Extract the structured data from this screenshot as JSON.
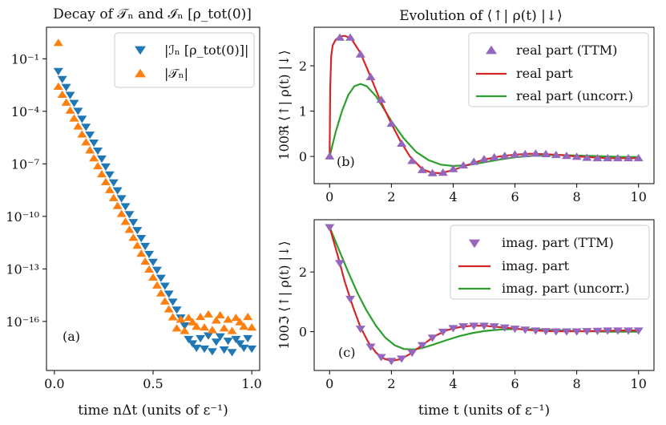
{
  "colors": {
    "blue": "#1f77b4",
    "orange": "#ff7f0e",
    "purple": "#9467bd",
    "red": "#d62728",
    "green": "#2ca02c"
  },
  "chart_data": [
    {
      "id": "a",
      "type": "scatter",
      "title": "Decay of 𝒯ₙ and ℐₙ [ρ_tot(0)]",
      "xlabel": "time nΔt (units of ε⁻¹)",
      "ylabel": "",
      "yscale": "log",
      "panel_label": "(a)",
      "xlim": [
        -0.04,
        1.04
      ],
      "ylim_exp": [
        -18.8,
        0.8
      ],
      "x_ticks": [
        0.0,
        0.5,
        1.0
      ],
      "x_tick_labels": [
        "0.0",
        "0.5",
        "1.0"
      ],
      "y_ticks_exp": [
        -1,
        -4,
        -7,
        -10,
        -13,
        -16
      ],
      "y_tick_labels": [
        "10⁻¹",
        "10⁻⁴",
        "10⁻⁷",
        "10⁻¹⁰",
        "10⁻¹³",
        "10⁻¹⁶"
      ],
      "legend_position": "top-right",
      "series": [
        {
          "name": "|ℐₙ [ρ_tot(0)]|",
          "marker": "triangle-down",
          "color": "blue",
          "x_start": 0.02,
          "x_step": 0.02,
          "n": 50,
          "log10_start": -1.7,
          "log10_slope": -22.7,
          "plateau_log10": -17.3,
          "plateau_from_x": 0.68
        },
        {
          "name": "|𝒯ₙ|",
          "marker": "triangle-up",
          "color": "orange",
          "x_start": 0.02,
          "x_step": 0.02,
          "n": 50,
          "log10_start": -2.6,
          "log10_slope": -22.7,
          "plateau_log10": -16.1,
          "plateau_from_x": 0.62,
          "outlier": {
            "x": 0.02,
            "log10": -0.1
          }
        }
      ]
    },
    {
      "id": "b",
      "type": "line",
      "title": "Evolution of ⟨↑| ρ(t) |↓⟩",
      "xlabel": "",
      "ylabel": "100ℜ ⟨↑| ρ(t) |↓⟩",
      "panel_label": "(b)",
      "xlim": [
        -0.5,
        10.5
      ],
      "ylim": [
        -0.6,
        2.85
      ],
      "x_ticks": [
        0,
        2,
        4,
        6,
        8,
        10
      ],
      "x_tick_labels": [
        "0",
        "2",
        "4",
        "6",
        "8",
        "10"
      ],
      "y_ticks": [
        0,
        1,
        2
      ],
      "y_tick_labels": [
        "0",
        "1",
        "2"
      ],
      "legend_position": "top-right",
      "series": [
        {
          "name": "real part (TTM)",
          "kind": "markers",
          "marker": "triangle-up",
          "color": "purple",
          "x": [
            0,
            0.33,
            0.67,
            1.0,
            1.33,
            1.67,
            2.0,
            2.33,
            2.67,
            3.0,
            3.33,
            3.67,
            4.0,
            4.33,
            4.67,
            5.0,
            5.33,
            5.67,
            6.0,
            6.33,
            6.67,
            7.0,
            7.33,
            7.67,
            8.0,
            8.33,
            8.67,
            9.0,
            9.33,
            9.67,
            10.0
          ],
          "y": [
            0.0,
            2.62,
            2.62,
            2.25,
            1.75,
            1.25,
            0.72,
            0.28,
            -0.1,
            -0.3,
            -0.37,
            -0.36,
            -0.28,
            -0.2,
            -0.12,
            -0.06,
            -0.02,
            0.01,
            0.04,
            0.05,
            0.06,
            0.05,
            0.03,
            0.01,
            -0.01,
            -0.03,
            -0.04,
            -0.04,
            -0.04,
            -0.04,
            -0.04
          ]
        },
        {
          "name": "real part",
          "kind": "line",
          "color": "red",
          "x": [
            0,
            0.02,
            0.05,
            0.1,
            0.2,
            0.35,
            0.5,
            0.7,
            1.0,
            1.3,
            1.6,
            2.0,
            2.3,
            2.6,
            3.0,
            3.3,
            3.6,
            4.0,
            4.5,
            5.0,
            5.5,
            6.0,
            6.5,
            7.0,
            7.5,
            8.0,
            8.5,
            9.0,
            9.5,
            10.0
          ],
          "y": [
            0.0,
            1.5,
            2.2,
            2.45,
            2.58,
            2.65,
            2.66,
            2.6,
            2.28,
            1.8,
            1.3,
            0.72,
            0.33,
            0.0,
            -0.28,
            -0.36,
            -0.37,
            -0.3,
            -0.18,
            -0.07,
            0.0,
            0.04,
            0.06,
            0.05,
            0.03,
            0.0,
            -0.02,
            -0.04,
            -0.04,
            -0.04
          ]
        },
        {
          "name": "real part (uncorr.)",
          "kind": "line",
          "color": "green",
          "x": [
            0,
            0.2,
            0.4,
            0.6,
            0.8,
            1.0,
            1.2,
            1.5,
            1.8,
            2.0,
            2.4,
            2.8,
            3.2,
            3.6,
            4.0,
            4.5,
            5.0,
            5.5,
            6.0,
            6.5,
            7.0,
            7.5,
            8.0,
            8.5,
            9.0,
            9.5,
            10.0
          ],
          "y": [
            0.0,
            0.55,
            1.0,
            1.35,
            1.55,
            1.6,
            1.55,
            1.33,
            1.0,
            0.78,
            0.4,
            0.1,
            -0.08,
            -0.18,
            -0.21,
            -0.19,
            -0.13,
            -0.07,
            -0.02,
            0.01,
            0.03,
            0.03,
            0.02,
            0.01,
            0.0,
            -0.01,
            -0.01
          ]
        }
      ]
    },
    {
      "id": "c",
      "type": "line",
      "title": "",
      "xlabel": "time t (units of ε⁻¹)",
      "ylabel": "100ℑ ⟨↑| ρ(t) |↓⟩",
      "panel_label": "(c)",
      "xlim": [
        -0.5,
        10.5
      ],
      "ylim": [
        -1.3,
        3.75
      ],
      "x_ticks": [
        0,
        2,
        4,
        6,
        8,
        10
      ],
      "x_tick_labels": [
        "0",
        "2",
        "4",
        "6",
        "8",
        "10"
      ],
      "y_ticks": [
        0,
        2
      ],
      "y_tick_labels": [
        "0",
        "2"
      ],
      "legend_position": "top-right",
      "series": [
        {
          "name": "imag. part (TTM)",
          "kind": "markers",
          "marker": "triangle-down",
          "color": "purple",
          "x": [
            0,
            0.33,
            0.67,
            1.0,
            1.33,
            1.67,
            2.0,
            2.33,
            2.67,
            3.0,
            3.33,
            3.67,
            4.0,
            4.33,
            4.67,
            5.0,
            5.33,
            5.67,
            6.0,
            6.33,
            6.67,
            7.0,
            7.33,
            7.67,
            8.0,
            8.33,
            8.67,
            9.0,
            9.33,
            9.67,
            10.0
          ],
          "y": [
            3.5,
            2.3,
            1.1,
            0.1,
            -0.5,
            -0.85,
            -0.98,
            -0.9,
            -0.7,
            -0.45,
            -0.2,
            0.0,
            0.12,
            0.18,
            0.2,
            0.2,
            0.18,
            0.14,
            0.1,
            0.07,
            0.04,
            0.02,
            0.01,
            0.01,
            0.01,
            0.02,
            0.03,
            0.04,
            0.04,
            0.04,
            0.04
          ]
        },
        {
          "name": "imag. part",
          "kind": "line",
          "color": "red",
          "x": [
            0,
            0.25,
            0.5,
            0.75,
            1.0,
            1.25,
            1.5,
            1.75,
            2.0,
            2.3,
            2.6,
            3.0,
            3.4,
            3.8,
            4.2,
            4.6,
            5.0,
            5.5,
            6.0,
            6.5,
            7.0,
            7.5,
            8.0,
            8.5,
            9.0,
            9.5,
            10.0
          ],
          "y": [
            3.5,
            2.6,
            1.65,
            0.85,
            0.15,
            -0.35,
            -0.7,
            -0.9,
            -0.98,
            -0.92,
            -0.75,
            -0.45,
            -0.15,
            0.05,
            0.15,
            0.2,
            0.2,
            0.15,
            0.1,
            0.05,
            0.02,
            0.01,
            0.01,
            0.02,
            0.03,
            0.04,
            0.04
          ]
        },
        {
          "name": "imag. part (uncorr.)",
          "kind": "line",
          "color": "green",
          "x": [
            0,
            0.3,
            0.6,
            0.9,
            1.2,
            1.5,
            1.8,
            2.1,
            2.4,
            2.7,
            3.0,
            3.4,
            3.8,
            4.2,
            4.6,
            5.0,
            5.5,
            6.0,
            6.5,
            7.0,
            7.5,
            8.0,
            8.5,
            9.0,
            9.5,
            10.0
          ],
          "y": [
            3.5,
            2.75,
            2.0,
            1.3,
            0.7,
            0.2,
            -0.2,
            -0.45,
            -0.58,
            -0.6,
            -0.55,
            -0.42,
            -0.28,
            -0.15,
            -0.05,
            0.02,
            0.07,
            0.09,
            0.08,
            0.06,
            0.04,
            0.02,
            0.01,
            0.0,
            0.0,
            0.0
          ]
        }
      ]
    }
  ]
}
